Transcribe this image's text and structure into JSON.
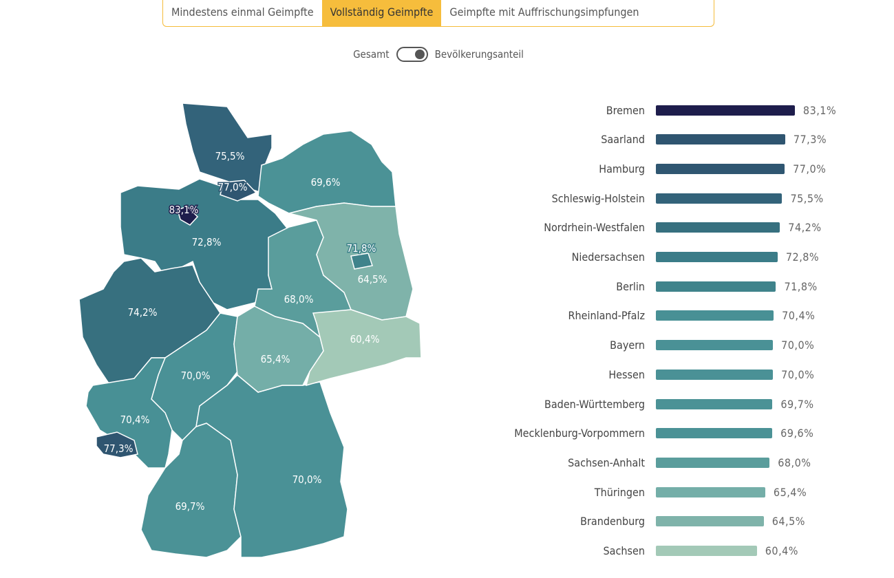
{
  "tabs": [
    {
      "label": "Mindestens einmal Geimpfte",
      "active": false
    },
    {
      "label": "Vollständig Geimpfte",
      "active": true
    },
    {
      "label": "Geimpfte mit Auffrischungsimpfungen",
      "active": false
    }
  ],
  "toggle": {
    "left_label": "Gesamt",
    "right_label": "Bevölkerungsanteil",
    "state": "right"
  },
  "chart_data": {
    "type": "bar",
    "orientation": "horizontal",
    "unit": "%",
    "categories": [
      "Bremen",
      "Saarland",
      "Hamburg",
      "Schleswig-Holstein",
      "Nordrhein-Westfalen",
      "Niedersachsen",
      "Berlin",
      "Rheinland-Pfalz",
      "Bayern",
      "Hessen",
      "Baden-Württemberg",
      "Mecklenburg-Vorpommern",
      "Sachsen-Anhalt",
      "Thüringen",
      "Brandenburg",
      "Sachsen"
    ],
    "values": [
      83.1,
      77.3,
      77.0,
      75.5,
      74.2,
      72.8,
      71.8,
      70.4,
      70.0,
      70.0,
      69.7,
      69.6,
      68.0,
      65.4,
      64.5,
      60.4
    ],
    "labels": [
      "83,1%",
      "77,3%",
      "77,0%",
      "75,5%",
      "74,2%",
      "72,8%",
      "71,8%",
      "70,4%",
      "70,0%",
      "70,0%",
      "69,7%",
      "69,6%",
      "68,0%",
      "65,4%",
      "64,5%",
      "60,4%"
    ],
    "colors": [
      "#1e1d4c",
      "#2f5570",
      "#2f5671",
      "#33637a",
      "#37707f",
      "#3b7c88",
      "#3f838b",
      "#489095",
      "#4a9196",
      "#4a9196",
      "#4b9296",
      "#4b9296",
      "#5a9d9c",
      "#74aea8",
      "#7fb3aa",
      "#a3c9b7"
    ],
    "xlim": [
      0,
      100
    ]
  }
}
